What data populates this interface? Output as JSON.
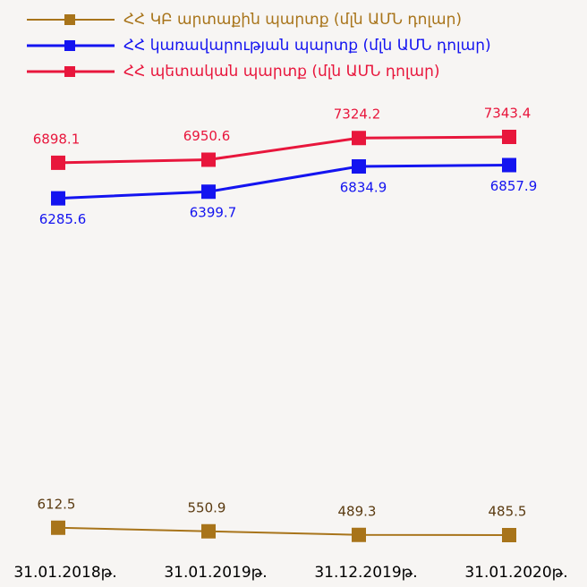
{
  "chart_data": {
    "type": "line",
    "categories": [
      "31.01.2018թ.",
      "31.01.2019թ.",
      "31.12.2019թ.",
      "31.01.2020թ."
    ],
    "series": [
      {
        "name": "ՀՀ ԿԲ արտաքին պարտք (մլն ԱՄՆ դոլար)",
        "color": "#a8741a",
        "values": [
          612.5,
          550.9,
          489.3,
          485.5
        ]
      },
      {
        "name": "ՀՀ կառավարության պարտք (մլն ԱՄՆ դոլար)",
        "color": "#1414f0",
        "values": [
          6285.6,
          6399.7,
          6834.9,
          6857.9
        ]
      },
      {
        "name": "ՀՀ պետական պարտք (մլն ԱՄՆ դոլար)",
        "color": "#e8163c",
        "values": [
          6898.1,
          6950.6,
          7324.2,
          7343.4
        ]
      }
    ]
  }
}
